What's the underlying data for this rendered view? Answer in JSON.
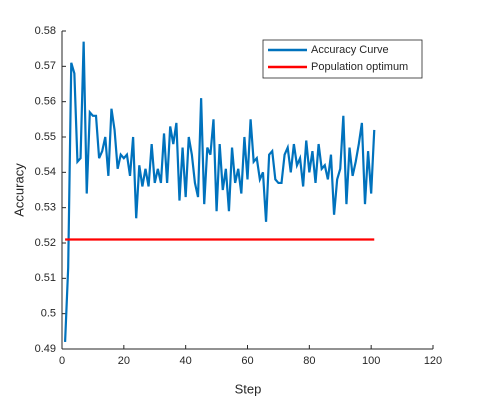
{
  "chart_data": {
    "type": "line",
    "xlabel": "Step",
    "ylabel": "Accuracy",
    "xlim": [
      0,
      120
    ],
    "xticks": [
      0,
      20,
      40,
      60,
      80,
      100,
      120
    ],
    "ylim": [
      0.49,
      0.58
    ],
    "yticks": [
      0.49,
      0.5,
      0.51,
      0.52,
      0.53,
      0.54,
      0.55,
      0.56,
      0.57,
      0.58
    ],
    "legend": "northeast",
    "series": [
      {
        "name": "Accuracy Curve",
        "color": "#0072bd",
        "x": [
          1,
          2,
          3,
          4,
          5,
          6,
          7,
          8,
          9,
          10,
          11,
          12,
          13,
          14,
          15,
          16,
          17,
          18,
          19,
          20,
          21,
          22,
          23,
          24,
          25,
          26,
          27,
          28,
          29,
          30,
          31,
          32,
          33,
          34,
          35,
          36,
          37,
          38,
          39,
          40,
          41,
          42,
          43,
          44,
          45,
          46,
          47,
          48,
          49,
          50,
          51,
          52,
          53,
          54,
          55,
          56,
          57,
          58,
          59,
          60,
          61,
          62,
          63,
          64,
          65,
          66,
          67,
          68,
          69,
          70,
          71,
          72,
          73,
          74,
          75,
          76,
          77,
          78,
          79,
          80,
          81,
          82,
          83,
          84,
          85,
          86,
          87,
          88,
          89,
          90,
          91,
          92,
          93,
          94,
          95,
          96,
          97,
          98,
          99,
          100,
          101
        ],
        "values": [
          0.492,
          0.513,
          0.571,
          0.568,
          0.543,
          0.544,
          0.577,
          0.534,
          0.557,
          0.556,
          0.556,
          0.544,
          0.546,
          0.55,
          0.539,
          0.558,
          0.552,
          0.541,
          0.545,
          0.544,
          0.545,
          0.539,
          0.55,
          0.527,
          0.542,
          0.536,
          0.541,
          0.536,
          0.548,
          0.537,
          0.541,
          0.537,
          0.551,
          0.537,
          0.553,
          0.548,
          0.554,
          0.532,
          0.547,
          0.533,
          0.55,
          0.545,
          0.537,
          0.533,
          0.561,
          0.531,
          0.547,
          0.545,
          0.555,
          0.529,
          0.548,
          0.535,
          0.541,
          0.529,
          0.547,
          0.537,
          0.541,
          0.534,
          0.55,
          0.538,
          0.555,
          0.543,
          0.544,
          0.538,
          0.54,
          0.526,
          0.545,
          0.546,
          0.538,
          0.537,
          0.537,
          0.545,
          0.547,
          0.54,
          0.548,
          0.542,
          0.544,
          0.536,
          0.549,
          0.54,
          0.546,
          0.537,
          0.548,
          0.541,
          0.542,
          0.538,
          0.545,
          0.528,
          0.538,
          0.541,
          0.556,
          0.531,
          0.547,
          0.539,
          0.543,
          0.548,
          0.554,
          0.531,
          0.546,
          0.534,
          0.552
        ]
      },
      {
        "name": "Population optimum",
        "color": "#ff0000",
        "x": [
          1,
          101
        ],
        "values": [
          0.521,
          0.521
        ]
      }
    ]
  }
}
